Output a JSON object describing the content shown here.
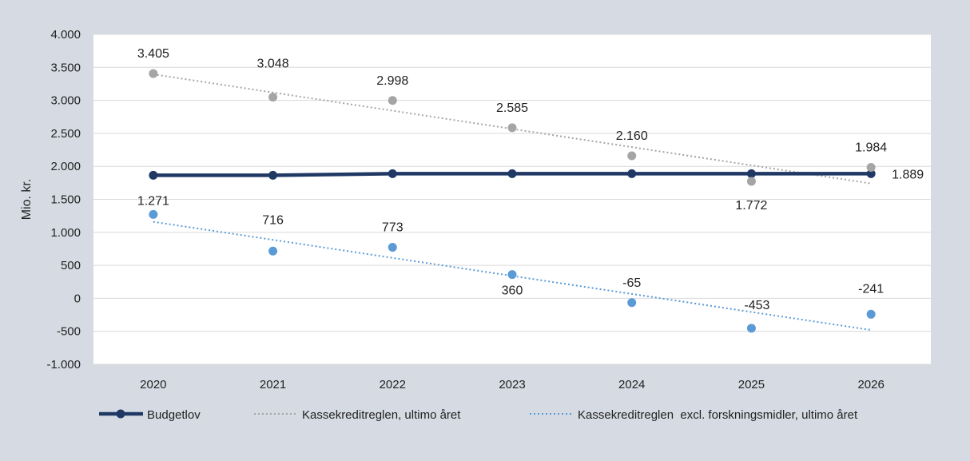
{
  "chart_data": {
    "type": "line",
    "title": "",
    "xlabel": "",
    "ylabel": "Mio. kr.",
    "categories": [
      "2020",
      "2021",
      "2022",
      "2023",
      "2024",
      "2025",
      "2026"
    ],
    "ylim": [
      -1000,
      4000
    ],
    "ytick_values": [
      -1000,
      -500,
      0,
      500,
      1000,
      1500,
      2000,
      2500,
      3000,
      3500,
      4000
    ],
    "ytick_labels": [
      "-1.000",
      "-500",
      "0",
      "500",
      "1.000",
      "1.500",
      "2.000",
      "2.500",
      "3.000",
      "3.500",
      "4.000"
    ],
    "grid": true,
    "legend_position": "bottom",
    "series": [
      {
        "name": "Budgetlov",
        "style": "solid-line-markers",
        "color": "#203864",
        "values": [
          1865,
          1865,
          1889,
          1889,
          1889,
          1889,
          1889
        ],
        "labels": [
          "",
          "",
          "",
          "",
          "",
          "",
          "1.889"
        ]
      },
      {
        "name": "Kassekreditreglen, ultimo året",
        "style": "markers-dotted-trend",
        "color": "#a5a5a5",
        "values": [
          3405,
          3048,
          2998,
          2585,
          2160,
          1772,
          1984
        ],
        "labels": [
          "3.405",
          "3.048",
          "2.998",
          "2.585",
          "2.160",
          "1.772",
          "1.984"
        ],
        "trend": [
          3395,
          1740
        ]
      },
      {
        "name": "Kassekreditreglen  excl. forskningsmidler, ultimo året",
        "style": "markers-dotted-trend",
        "color": "#5b9bd5",
        "values": [
          1271,
          716,
          773,
          360,
          -65,
          -453,
          -241
        ],
        "labels": [
          "1.271",
          "716",
          "773",
          "360",
          "-65",
          "-453",
          "-241"
        ],
        "trend": [
          1160,
          -480
        ]
      }
    ]
  },
  "colors": {
    "background": "#d6dbe3",
    "plot_area": "#ffffff",
    "gridline": "#d9d9d9"
  }
}
